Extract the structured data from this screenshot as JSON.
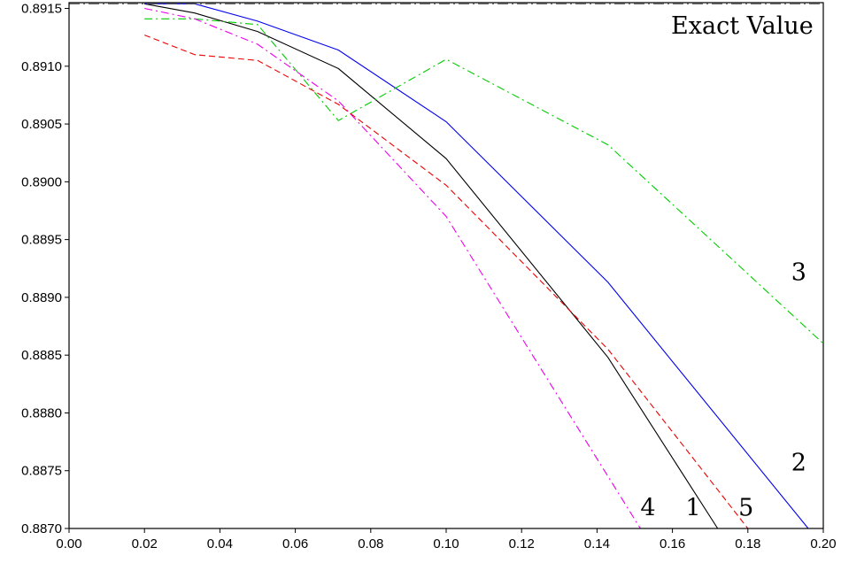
{
  "chart_data": {
    "type": "line",
    "title": "",
    "xlabel": "",
    "ylabel": "",
    "xlim": [
      0.0,
      0.2
    ],
    "ylim": [
      0.887,
      0.89155
    ],
    "xticks": [
      "0.00",
      "0.02",
      "0.04",
      "0.06",
      "0.08",
      "0.10",
      "0.12",
      "0.14",
      "0.16",
      "0.18",
      "0.20"
    ],
    "yticks": [
      "0.8870",
      "0.8875",
      "0.8880",
      "0.8885",
      "0.8890",
      "0.8895",
      "0.8900",
      "0.8905",
      "0.8910",
      "0.8915"
    ],
    "grid": false,
    "reference_line": {
      "label": "Exact Value",
      "y": 0.89154,
      "color": "#555555"
    },
    "series": [
      {
        "name": "1",
        "color": "#000000",
        "style": "solid",
        "x": [
          0.02,
          0.0333,
          0.05,
          0.0714,
          0.1,
          0.1429,
          0.172
        ],
        "y": [
          0.89154,
          0.89146,
          0.8913,
          0.89098,
          0.8902,
          0.88848,
          0.887
        ]
      },
      {
        "name": "2",
        "color": "#0000ee",
        "style": "solid",
        "x": [
          0.02,
          0.0333,
          0.05,
          0.0714,
          0.1,
          0.1429,
          0.196
        ],
        "y": [
          0.89154,
          0.89154,
          0.89139,
          0.89114,
          0.89052,
          0.88913,
          0.887
        ]
      },
      {
        "name": "3",
        "color": "#00cc00",
        "style": "dashdot",
        "x": [
          0.02,
          0.0333,
          0.05,
          0.0714,
          0.1,
          0.1429,
          0.2
        ],
        "y": [
          0.89141,
          0.89141,
          0.89136,
          0.89053,
          0.89106,
          0.89032,
          0.8886
        ]
      },
      {
        "name": "4",
        "color": "#ee00ee",
        "style": "dashdot",
        "x": [
          0.02,
          0.0333,
          0.05,
          0.0714,
          0.1,
          0.1515
        ],
        "y": [
          0.8915,
          0.89141,
          0.89119,
          0.8907,
          0.8897,
          0.887
        ]
      },
      {
        "name": "5",
        "color": "#ee0000",
        "style": "dashed",
        "x": [
          0.02,
          0.0333,
          0.05,
          0.0714,
          0.1,
          0.1429,
          0.18
        ],
        "y": [
          0.89127,
          0.8911,
          0.89105,
          0.89067,
          0.88997,
          0.88855,
          0.887
        ]
      }
    ],
    "annotations": [
      {
        "text": "Exact Value",
        "x": 0.1785,
        "y": 0.89128
      },
      {
        "text": "3",
        "x": 0.1935,
        "y": 0.88915
      },
      {
        "text": "2",
        "x": 0.1935,
        "y": 0.8875
      },
      {
        "text": "4",
        "x": 0.1535,
        "y": 0.88711
      },
      {
        "text": "1",
        "x": 0.1655,
        "y": 0.88711
      },
      {
        "text": "5",
        "x": 0.1795,
        "y": 0.88711
      }
    ]
  }
}
